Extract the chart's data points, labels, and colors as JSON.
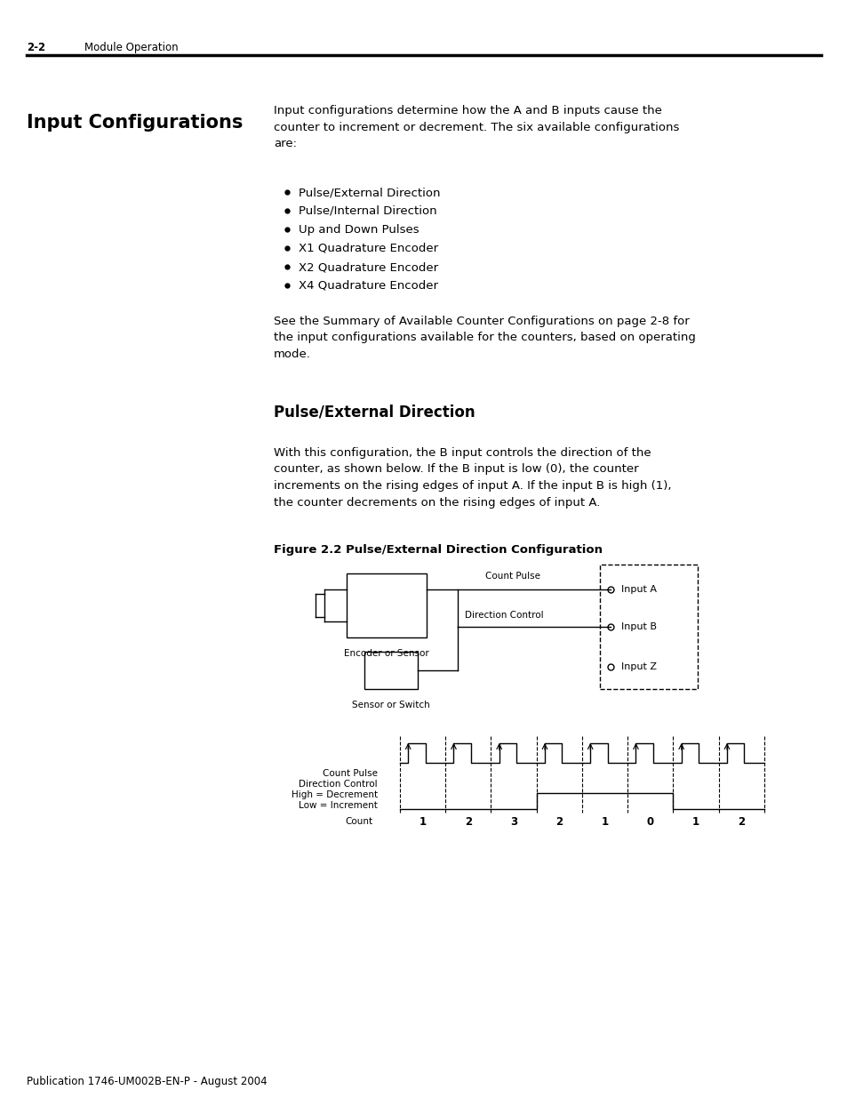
{
  "page_header_num": "2-2",
  "page_header_text": "Module Operation",
  "section_title": "Input Configurations",
  "section_body": "Input configurations determine how the A and B inputs cause the\ncounter to increment or decrement. The six available configurations\nare:",
  "bullet_items": [
    "Pulse/External Direction",
    "Pulse/Internal Direction",
    "Up and Down Pulses",
    "X1 Quadrature Encoder",
    "X2 Quadrature Encoder",
    "X4 Quadrature Encoder"
  ],
  "see_also_text": "See the Summary of Available Counter Configurations on page 2-8 for\nthe input configurations available for the counters, based on operating\nmode.",
  "subsection_title": "Pulse/External Direction",
  "subsection_body": "With this configuration, the B input controls the direction of the\ncounter, as shown below. If the B input is low (0), the counter\nincrements on the rising edges of input A. If the input B is high (1),\nthe counter decrements on the rising edges of input A.",
  "figure_label": "Figure 2.2 Pulse/External Direction Configuration",
  "footer_text": "Publication 1746-UM002B-EN-P - August 2004",
  "background_color": "#ffffff",
  "text_color": "#000000",
  "count_labels": [
    "1",
    "2",
    "3",
    "2",
    "1",
    "0",
    "1",
    "2"
  ]
}
